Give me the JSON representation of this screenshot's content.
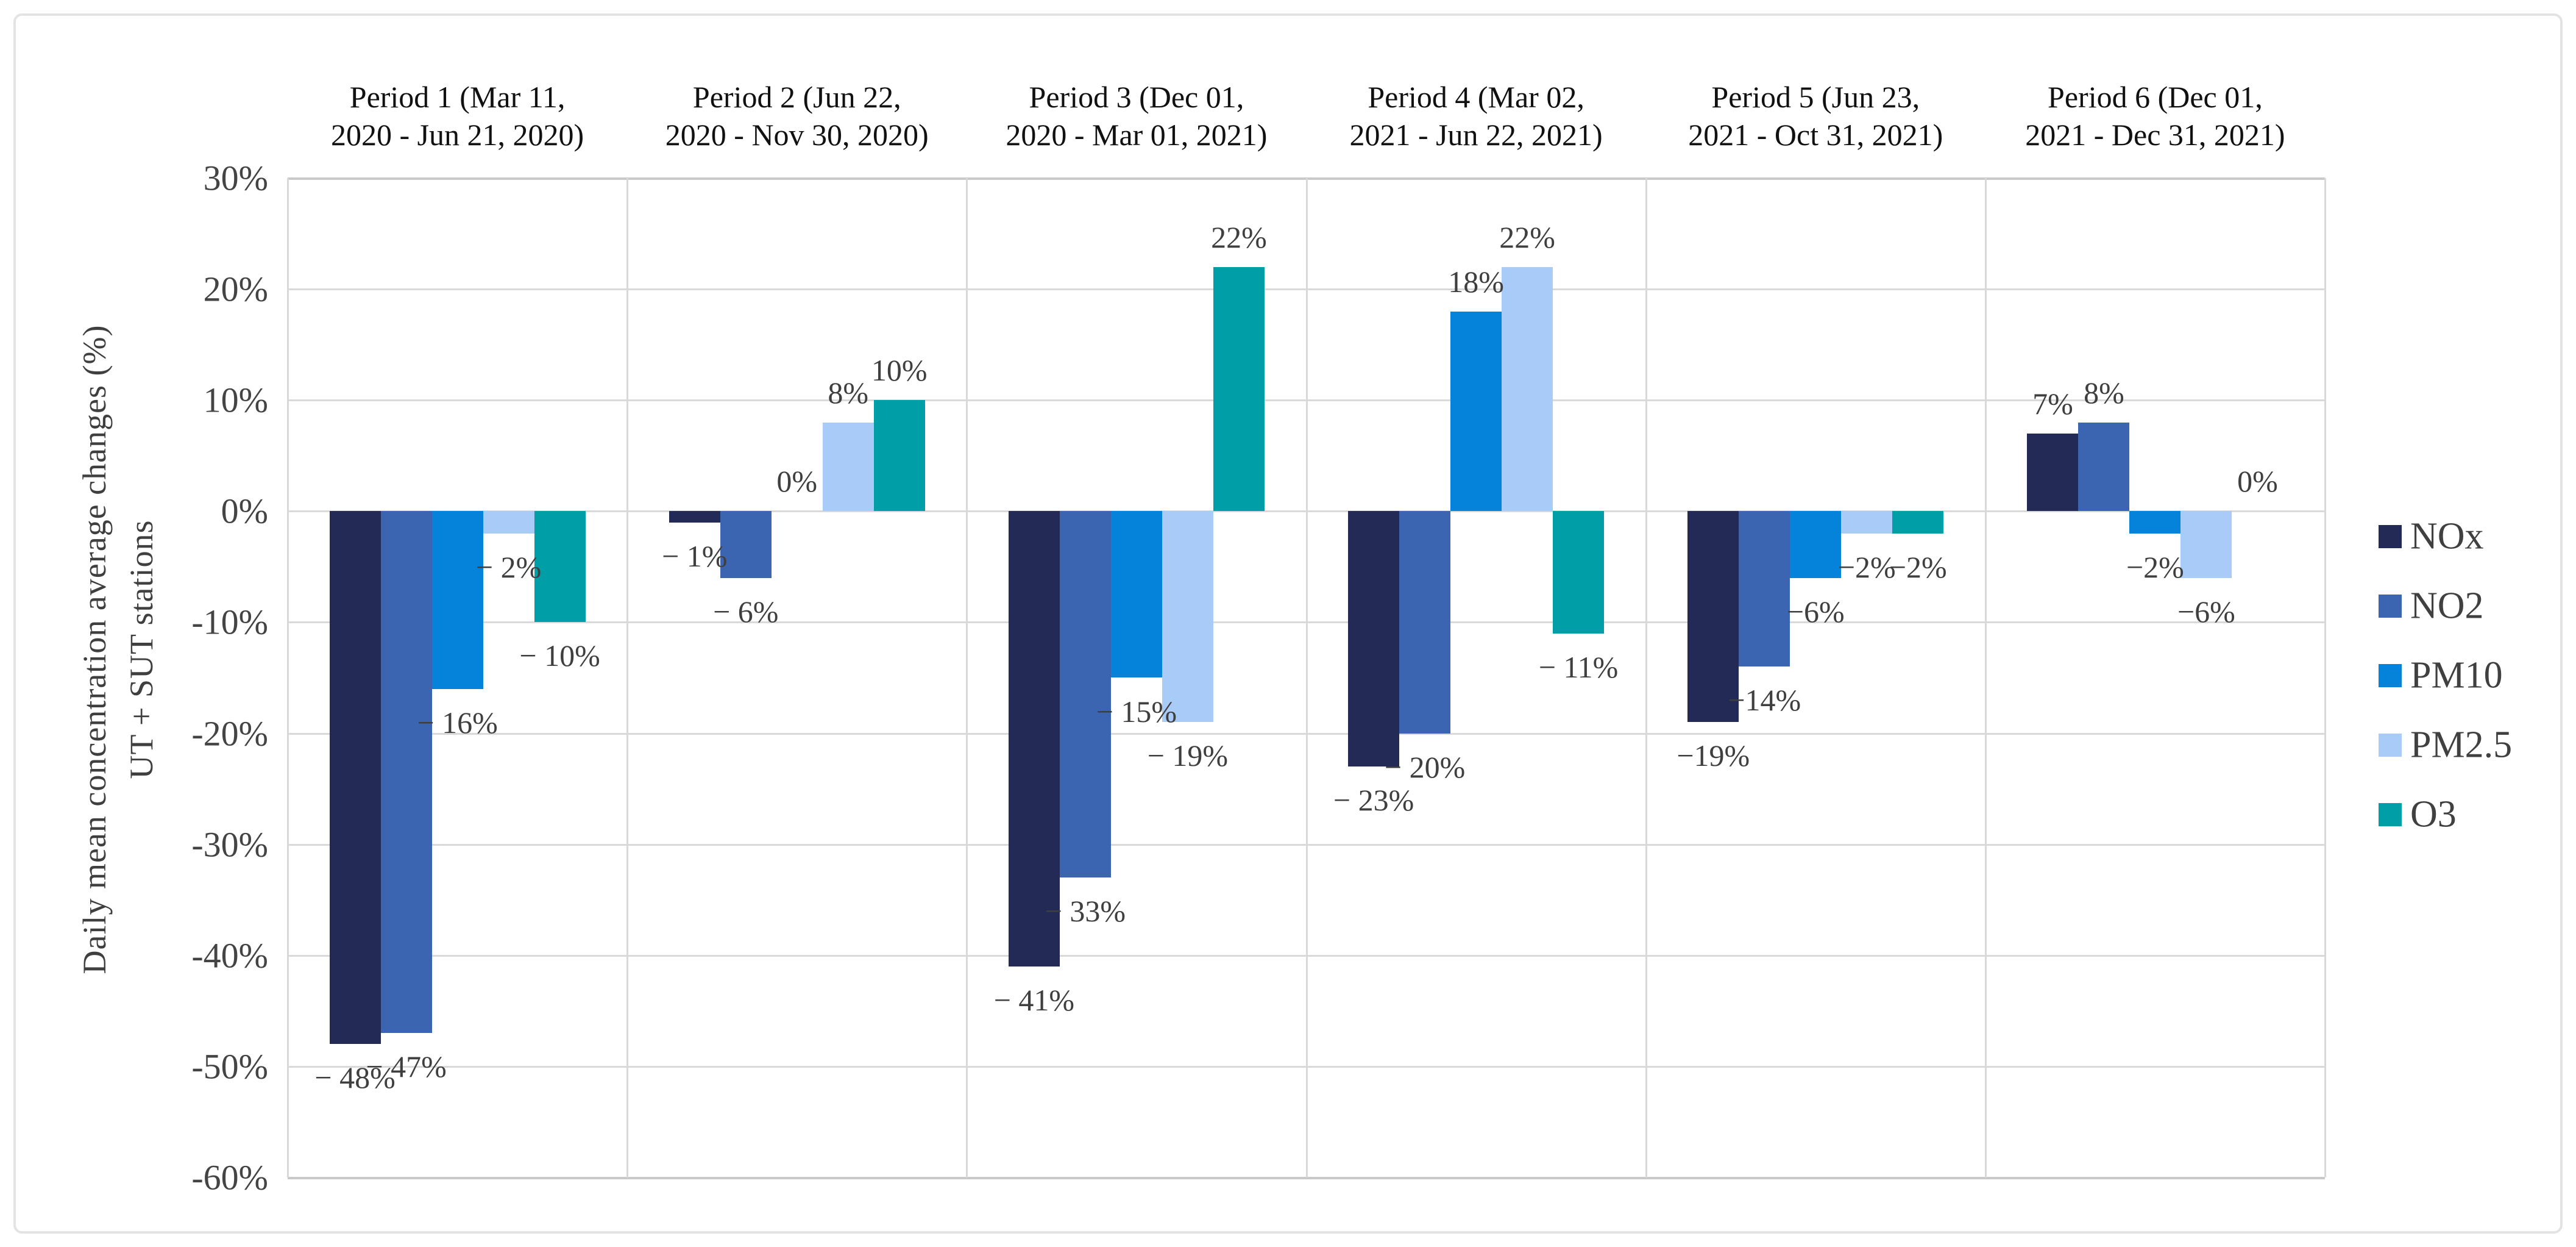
{
  "figure_type": "bar-chart-screenshot",
  "y_axis": {
    "title_line1": "Daily mean concentration average changes (%)",
    "title_line2": "UT + SUT stations",
    "tick_labels": [
      "30%",
      "20%",
      "10%",
      "0%",
      "-10%",
      "-20%",
      "-30%",
      "-40%",
      "-50%",
      "-60%"
    ]
  },
  "chart_data": {
    "type": "bar",
    "title": "",
    "xlabel": "",
    "ylabel": "Daily mean concentration average changes (%) UT + SUT stations",
    "ylim": [
      -60,
      30
    ],
    "ytick_step": 10,
    "grid": true,
    "legend_position": "right",
    "categories": [
      "Period 1 (Mar 11, 2020 -  Jun 21, 2020)",
      "Period 2 (Jun 22, 2020 -  Nov 30, 2020)",
      "Period 3 (Dec 01, 2020 - Mar 01, 2021)",
      "Period 4 (Mar 02, 2021 - Jun 22, 2021)",
      "Period 5 (Jun 23, 2021 - Oct 31, 2021)",
      "Period 6 (Dec 01, 2021 - Dec 31, 2021)"
    ],
    "categories_lines": [
      [
        "Period 1 (Mar 11,",
        "2020 -  Jun 21, 2020)"
      ],
      [
        "Period 2 (Jun 22,",
        "2020 -  Nov 30, 2020)"
      ],
      [
        "Period 3 (Dec 01,",
        "2020 - Mar 01, 2021)"
      ],
      [
        "Period 4 (Mar 02,",
        "2021 - Jun 22, 2021)"
      ],
      [
        "Period 5 (Jun 23,",
        "2021 - Oct 31, 2021)"
      ],
      [
        "Period 6 (Dec 01,",
        "2021 - Dec 31, 2021)"
      ]
    ],
    "series": [
      {
        "name": "NOx",
        "color": "#242a56",
        "values": [
          -48,
          -1,
          -41,
          -23,
          -19,
          7
        ],
        "labels": [
          "− 48%",
          "− 1%",
          "− 41%",
          "− 23%",
          "−19%",
          "7%"
        ]
      },
      {
        "name": "NO2",
        "color": "#3c65b1",
        "values": [
          -47,
          -6,
          -33,
          -20,
          -14,
          8
        ],
        "labels": [
          "− 47%",
          "− 6%",
          "− 33%",
          "− 20%",
          "−14%",
          "8%"
        ]
      },
      {
        "name": "PM10",
        "color": "#0583db",
        "values": [
          -16,
          0,
          -15,
          18,
          -6,
          -2
        ],
        "labels": [
          "− 16%",
          "0%",
          "− 15%",
          "18%",
          "−6%",
          "−2%"
        ]
      },
      {
        "name": "PM2.5",
        "color": "#a9cbf7",
        "values": [
          -2,
          8,
          -19,
          22,
          -2,
          -6
        ],
        "labels": [
          "− 2%",
          "8%",
          "− 19%",
          "22%",
          "−2%",
          "−6%"
        ]
      },
      {
        "name": "O3",
        "color": "#009fa8",
        "values": [
          -10,
          10,
          22,
          -11,
          -2,
          0
        ],
        "labels": [
          "− 10%",
          "10%",
          "22%",
          "− 11%",
          "−2%",
          "0%"
        ]
      }
    ],
    "legend_entries": [
      "NOx",
      "NO2",
      "PM10",
      "PM2.5",
      "O3"
    ]
  },
  "colors": {
    "background": "#ffffff",
    "gridline": "#d9d9d9",
    "plot_border": "#c9c9c9",
    "outer_border": "#e3e3e3",
    "tick_text": "#444444",
    "header_text": "#111111",
    "label_text": "#3f3f3f"
  }
}
